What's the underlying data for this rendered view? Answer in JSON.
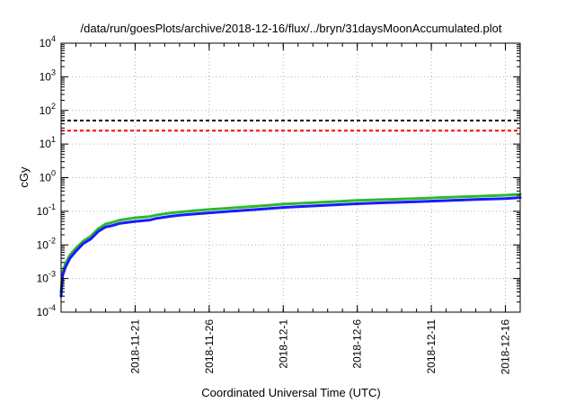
{
  "chart_data": {
    "type": "line",
    "title": "/data/run/goesPlots/archive/2018-12-16/flux/../bryn/31daysMoonAccumulated.plot",
    "xlabel": "Coordinated Universal Time (UTC)",
    "ylabel": "cGy",
    "yscale": "log",
    "ylim": [
      0.0001,
      10000
    ],
    "yticks": [
      {
        "base": "10",
        "exp": "-4",
        "value": 0.0001
      },
      {
        "base": "10",
        "exp": "-3",
        "value": 0.001
      },
      {
        "base": "10",
        "exp": "-2",
        "value": 0.01
      },
      {
        "base": "10",
        "exp": "-1",
        "value": 0.1
      },
      {
        "base": "10",
        "exp": "0",
        "value": 1
      },
      {
        "base": "10",
        "exp": "1",
        "value": 10
      },
      {
        "base": "10",
        "exp": "2",
        "value": 100
      },
      {
        "base": "10",
        "exp": "3",
        "value": 1000
      },
      {
        "base": "10",
        "exp": "4",
        "value": 10000
      }
    ],
    "xlim_days": [
      0,
      31
    ],
    "xticks": [
      {
        "label": "2018-11-21",
        "day": 5
      },
      {
        "label": "2018-11-26",
        "day": 10
      },
      {
        "label": "2018-12-1",
        "day": 15
      },
      {
        "label": "2018-12-6",
        "day": 20
      },
      {
        "label": "2018-12-11",
        "day": 25
      },
      {
        "label": "2018-12-16",
        "day": 30
      }
    ],
    "grid": true,
    "hlines": [
      {
        "name": "black-dashed-limit",
        "value": 50,
        "color": "#000000"
      },
      {
        "name": "red-dashed-limit",
        "value": 25,
        "color": "#ff0000"
      }
    ],
    "series": [
      {
        "name": "green-series",
        "color": "#2db82d",
        "x": [
          0,
          0.1,
          0.3,
          0.6,
          1,
          1.5,
          2,
          2.5,
          3,
          3.5,
          4,
          5,
          6,
          6.5,
          7,
          7.5,
          8,
          9,
          10,
          12,
          14,
          15,
          16,
          18,
          20,
          22,
          24,
          26,
          28,
          30,
          31
        ],
        "y": [
          0.0004,
          0.0015,
          0.0028,
          0.005,
          0.008,
          0.013,
          0.018,
          0.03,
          0.042,
          0.047,
          0.055,
          0.064,
          0.07,
          0.078,
          0.084,
          0.09,
          0.095,
          0.104,
          0.113,
          0.13,
          0.15,
          0.163,
          0.172,
          0.19,
          0.21,
          0.225,
          0.24,
          0.26,
          0.28,
          0.3,
          0.32
        ]
      },
      {
        "name": "blue-series",
        "color": "#1a1aff",
        "x": [
          0,
          0.1,
          0.3,
          0.6,
          1,
          1.5,
          2,
          2.5,
          3,
          3.5,
          4,
          5,
          6,
          6.5,
          7,
          7.5,
          8,
          9,
          10,
          12,
          14,
          15,
          16,
          18,
          20,
          22,
          24,
          26,
          28,
          30,
          31
        ],
        "y": [
          0.0003,
          0.0012,
          0.0022,
          0.004,
          0.0065,
          0.011,
          0.015,
          0.025,
          0.034,
          0.038,
          0.044,
          0.05,
          0.055,
          0.062,
          0.067,
          0.072,
          0.076,
          0.083,
          0.09,
          0.104,
          0.12,
          0.13,
          0.137,
          0.152,
          0.168,
          0.18,
          0.192,
          0.208,
          0.224,
          0.24,
          0.256
        ]
      }
    ]
  }
}
